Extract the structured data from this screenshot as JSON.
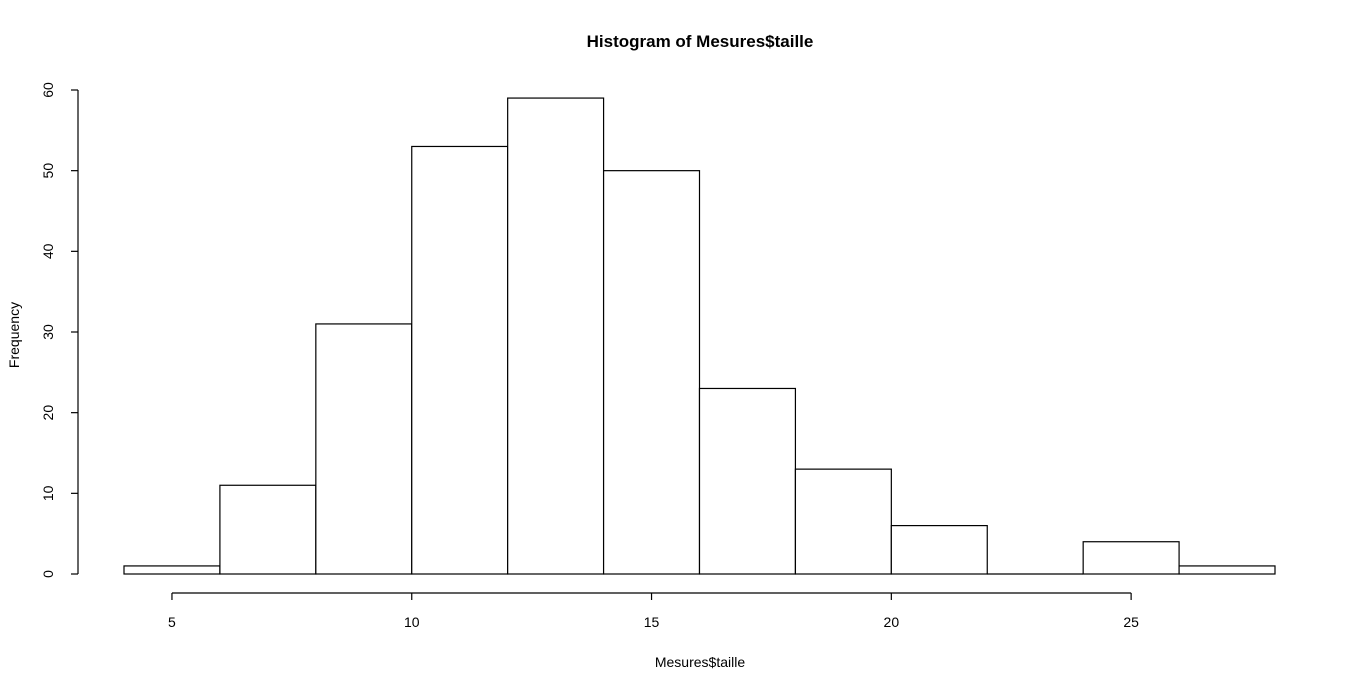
{
  "chart_data": {
    "type": "bar",
    "subtype": "histogram",
    "title": "Histogram of Mesures$taille",
    "xlabel": "Mesures$taille",
    "ylabel": "Frequency",
    "bin_edges": [
      4,
      6,
      8,
      10,
      12,
      14,
      16,
      18,
      20,
      22,
      24,
      26,
      28
    ],
    "values": [
      1,
      11,
      31,
      53,
      59,
      50,
      23,
      13,
      6,
      0,
      4,
      1
    ],
    "xlim": [
      4,
      28
    ],
    "ylim": [
      0,
      60
    ],
    "x_ticks": [
      5,
      10,
      15,
      20,
      25
    ],
    "y_ticks": [
      0,
      10,
      20,
      30,
      40,
      50,
      60
    ],
    "grid": false,
    "legend": "none",
    "colors": {
      "bar_fill": "#ffffff",
      "bar_stroke": "#000000",
      "background": "#ffffff"
    }
  }
}
